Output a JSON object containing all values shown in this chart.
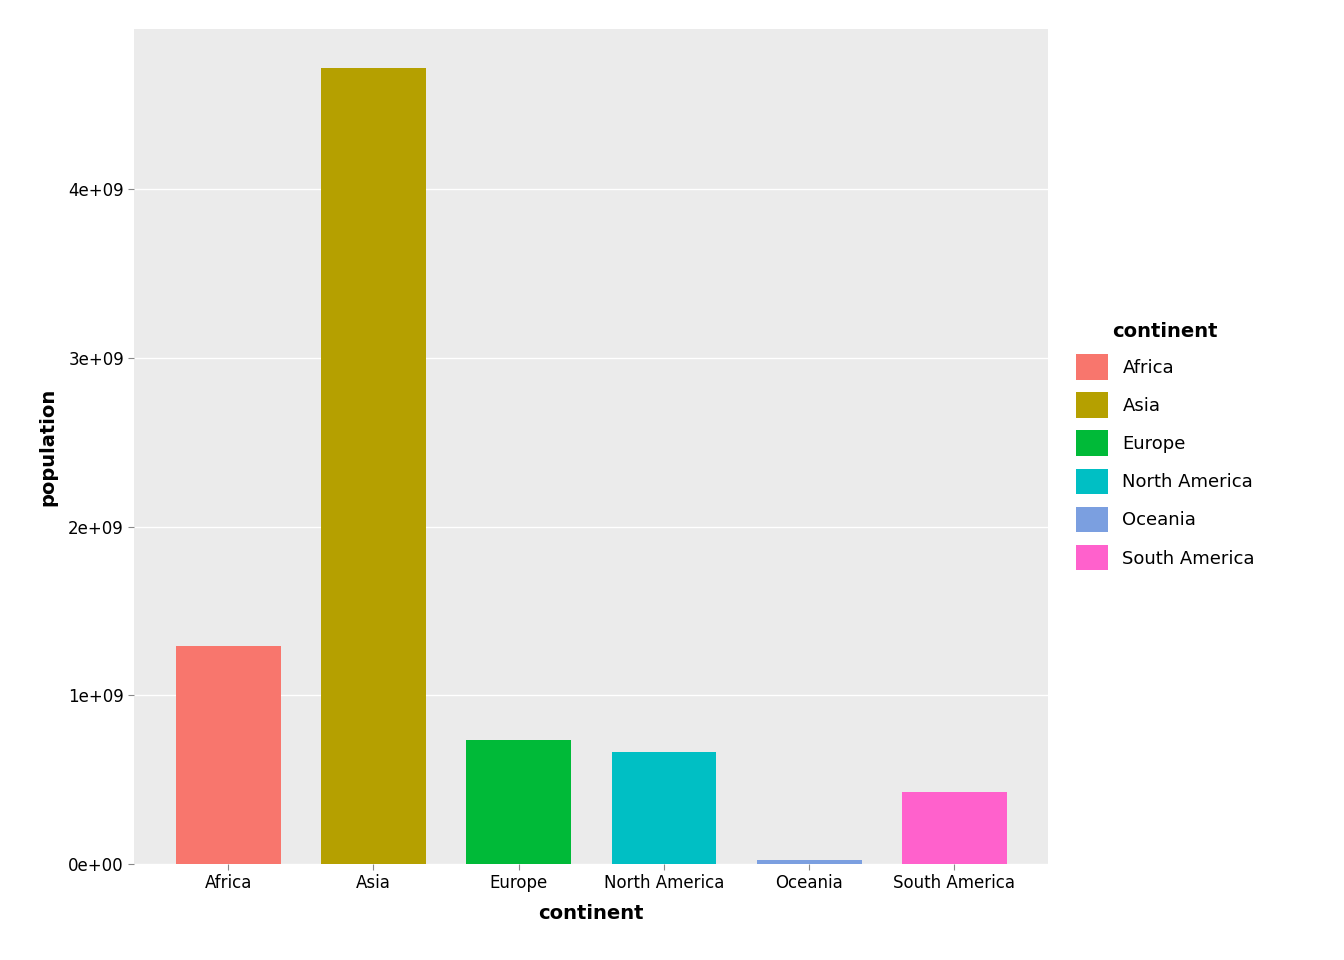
{
  "categories": [
    "Africa",
    "Asia",
    "Europe",
    "North America",
    "Oceania",
    "South America"
  ],
  "values": [
    1290000000.0,
    4720000000.0,
    735000000.0,
    662000000.0,
    24300000.0,
    424000000.0
  ],
  "bar_colors": [
    "#F8766D",
    "#B5A000",
    "#00BA38",
    "#00BFC4",
    "#7B9FE0",
    "#FF61CC"
  ],
  "legend_colors": [
    "#F8766D",
    "#B5A000",
    "#00BA38",
    "#00BFC4",
    "#7B9FE0",
    "#FF61CC"
  ],
  "legend_title": "continent",
  "xlabel": "continent",
  "ylabel": "population",
  "ylim": [
    0,
    4950000000.0
  ],
  "yticks": [
    0,
    1000000000.0,
    2000000000.0,
    3000000000.0,
    4000000000.0
  ],
  "ytick_labels": [
    "0e+00",
    "1e+09",
    "2e+09",
    "3e+09",
    "4e+09"
  ],
  "bg_color": "#EBEBEB",
  "grid_color": "#FFFFFF",
  "bar_width": 0.72,
  "axis_label_fontsize": 14,
  "tick_fontsize": 12,
  "legend_fontsize": 13,
  "legend_title_fontsize": 14
}
